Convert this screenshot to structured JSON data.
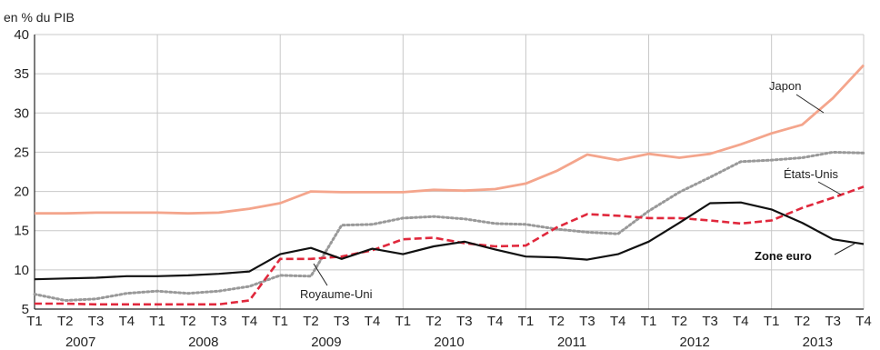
{
  "chart_data": {
    "type": "line",
    "unit_label": "en % du PIB",
    "ylim": [
      5,
      40
    ],
    "yticks": [
      5,
      10,
      15,
      20,
      25,
      30,
      35,
      40
    ],
    "grid": true,
    "quarters": [
      "T1",
      "T2",
      "T3",
      "T4",
      "T1",
      "T2",
      "T3",
      "T4",
      "T1",
      "T2",
      "T3",
      "T4",
      "T1",
      "T2",
      "T3",
      "T4",
      "T1",
      "T2",
      "T3",
      "T4",
      "T1",
      "T2",
      "T3",
      "T4",
      "T1",
      "T2",
      "T3",
      "T4"
    ],
    "years": [
      "2007",
      "2008",
      "2009",
      "2010",
      "2011",
      "2012",
      "2013"
    ],
    "series": [
      {
        "name": "Japon",
        "color": "#f4a58c",
        "style": "solid",
        "values": [
          17.2,
          17.2,
          17.3,
          17.3,
          17.3,
          17.2,
          17.3,
          17.8,
          18.5,
          20.0,
          19.9,
          19.9,
          19.9,
          20.2,
          20.1,
          20.3,
          21.0,
          22.6,
          24.7,
          24.0,
          24.8,
          24.3,
          24.8,
          26.0,
          27.4,
          28.5,
          31.9,
          36.1
        ]
      },
      {
        "name": "États-Unis",
        "color": "#999999",
        "style": "dotted",
        "values": [
          6.9,
          6.1,
          6.3,
          7.0,
          7.3,
          7.0,
          7.3,
          7.9,
          9.3,
          9.2,
          15.7,
          15.8,
          16.6,
          16.8,
          16.5,
          15.9,
          15.8,
          15.2,
          14.8,
          14.6,
          17.5,
          19.9,
          21.8,
          23.8,
          24.0,
          24.3,
          25.0,
          24.9
        ]
      },
      {
        "name": "Royaume-Uni",
        "color": "#e0283c",
        "style": "dashed",
        "values": [
          5.7,
          5.7,
          5.6,
          5.6,
          5.6,
          5.6,
          5.6,
          6.1,
          11.4,
          11.4,
          11.7,
          12.5,
          13.9,
          14.1,
          13.4,
          13.0,
          13.1,
          15.4,
          17.1,
          16.9,
          16.6,
          16.6,
          16.3,
          15.9,
          16.3,
          17.9,
          19.2,
          20.6
        ]
      },
      {
        "name": "Zone euro",
        "color": "#111111",
        "style": "solid",
        "values": [
          8.8,
          8.9,
          9.0,
          9.2,
          9.2,
          9.3,
          9.5,
          9.8,
          12.0,
          12.8,
          11.4,
          12.7,
          12.0,
          13.0,
          13.6,
          12.6,
          11.7,
          11.6,
          11.3,
          12.0,
          13.6,
          16.0,
          18.5,
          18.6,
          17.7,
          16.0,
          13.9,
          13.3
        ]
      }
    ]
  }
}
